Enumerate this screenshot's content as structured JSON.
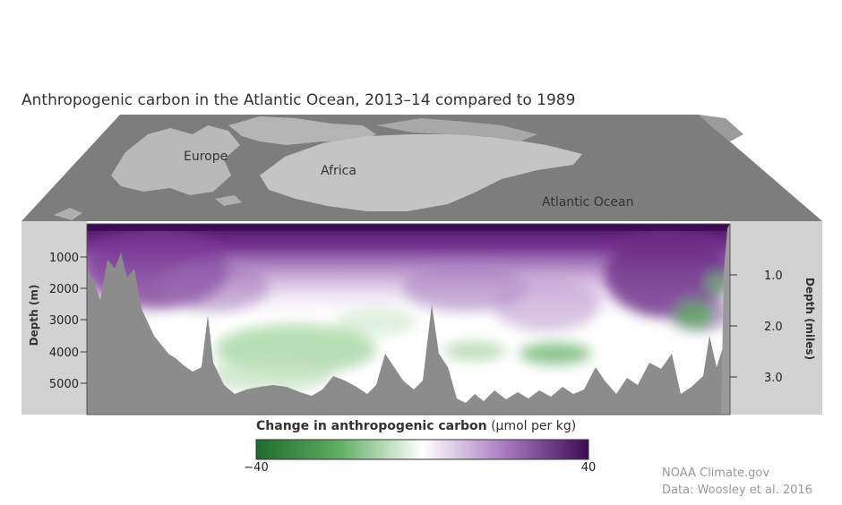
{
  "chart_data": {
    "type": "heatmap",
    "title": "Anthropogenic carbon in the Atlantic Ocean, 2013–14 compared to 1989",
    "map_labels": [
      "Europe",
      "Africa",
      "Atlantic Ocean"
    ],
    "ylabel_left": "Depth (m)",
    "ylabel_right": "Depth (miles)",
    "yticks_left": [
      1000,
      2000,
      3000,
      4000,
      5000
    ],
    "yticks_right": [
      1.0,
      2.0,
      3.0
    ],
    "ylim_m": [
      0,
      6000
    ],
    "colorbar": {
      "label_bold": "Change in anthropogenic carbon",
      "label_units": " (μmol per kg)",
      "min": -40,
      "max": 40,
      "min_label": "−40",
      "max_label": "40",
      "colors": [
        "#1e6b2c",
        "#ffffff",
        "#3e0a55"
      ]
    }
  },
  "credits": {
    "line1": "NOAA Climate.gov",
    "line2": "Data: Woosley et al. 2016"
  }
}
